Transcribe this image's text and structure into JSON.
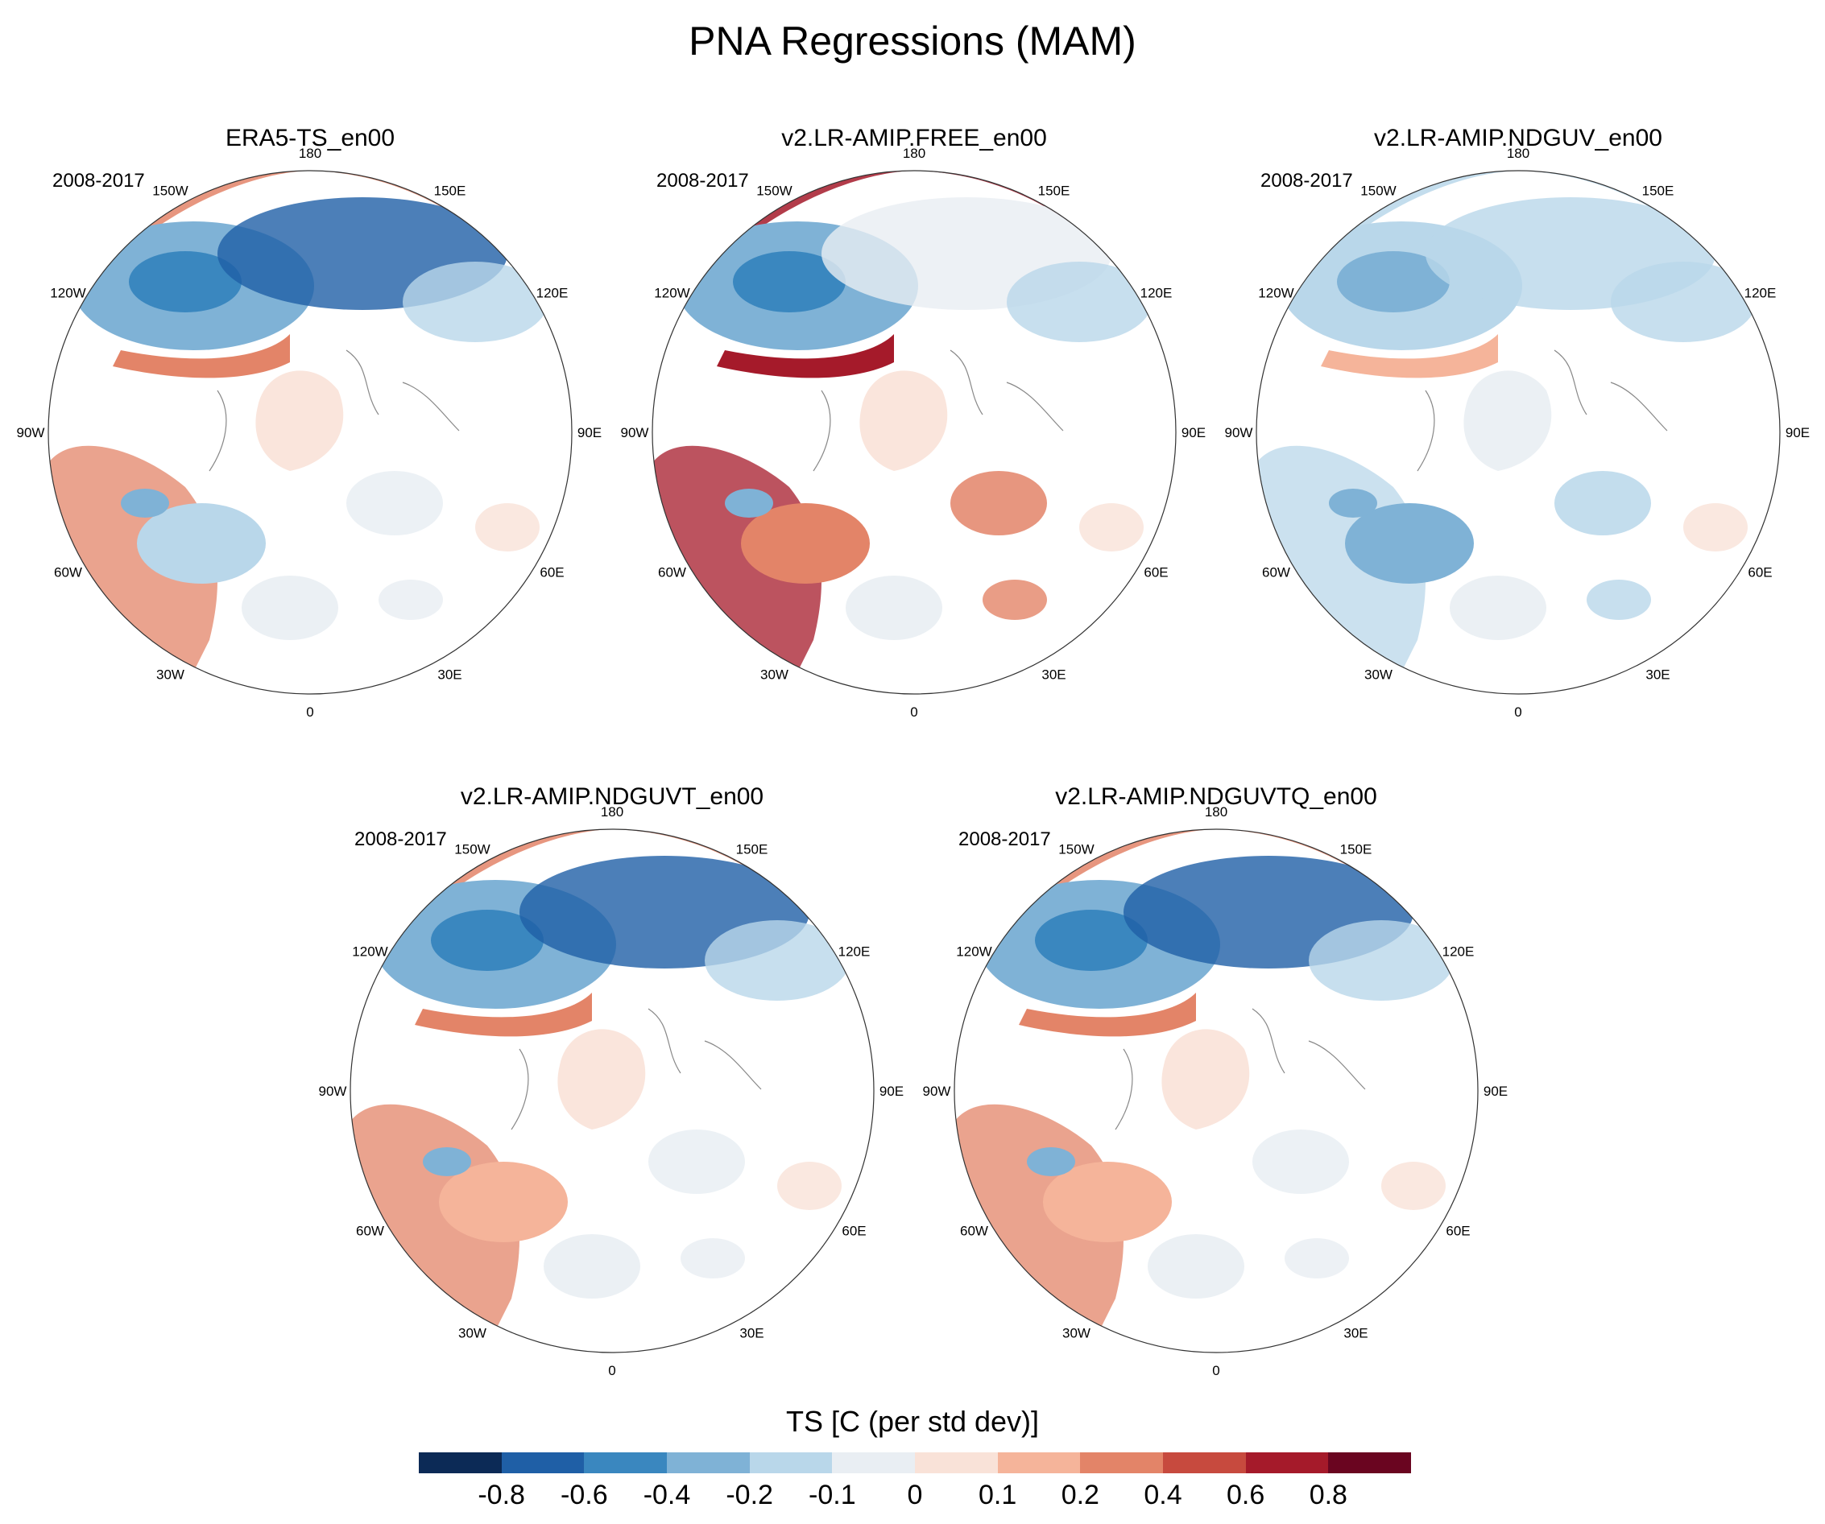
{
  "figure": {
    "title": "PNA Regressions (MAM)",
    "colorbar_title": "TS [C (per std dev)]",
    "colorbar_colors": [
      "#0c2a56",
      "#1f5fa6",
      "#3a87bf",
      "#7fb2d6",
      "#b9d7ea",
      "#e9eef3",
      "#f9e2d8",
      "#f5b49a",
      "#e38468",
      "#c74a3e",
      "#a51a2a",
      "#6a0520"
    ],
    "colorbar_labels": [
      "-0.8",
      "-0.6",
      "-0.4",
      "-0.2",
      "-0.1",
      "0",
      "0.1",
      "0.2",
      "0.4",
      "0.6",
      "0.8"
    ],
    "longitude_labels": [
      "180",
      "150E",
      "120E",
      "90E",
      "60E",
      "30E",
      "0",
      "30W",
      "60W",
      "90W",
      "120W",
      "150W"
    ]
  },
  "panels": [
    {
      "title": "ERA5-TS_en00",
      "period": "2008-2017"
    },
    {
      "title": "v2.LR-AMIP.FREE_en00",
      "period": "2008-2017"
    },
    {
      "title": "v2.LR-AMIP.NDGUV_en00",
      "period": "2008-2017"
    },
    {
      "title": "v2.LR-AMIP.NDGUVT_en00",
      "period": "2008-2017"
    },
    {
      "title": "v2.LR-AMIP.NDGUVTQ_en00",
      "period": "2008-2017"
    }
  ]
}
